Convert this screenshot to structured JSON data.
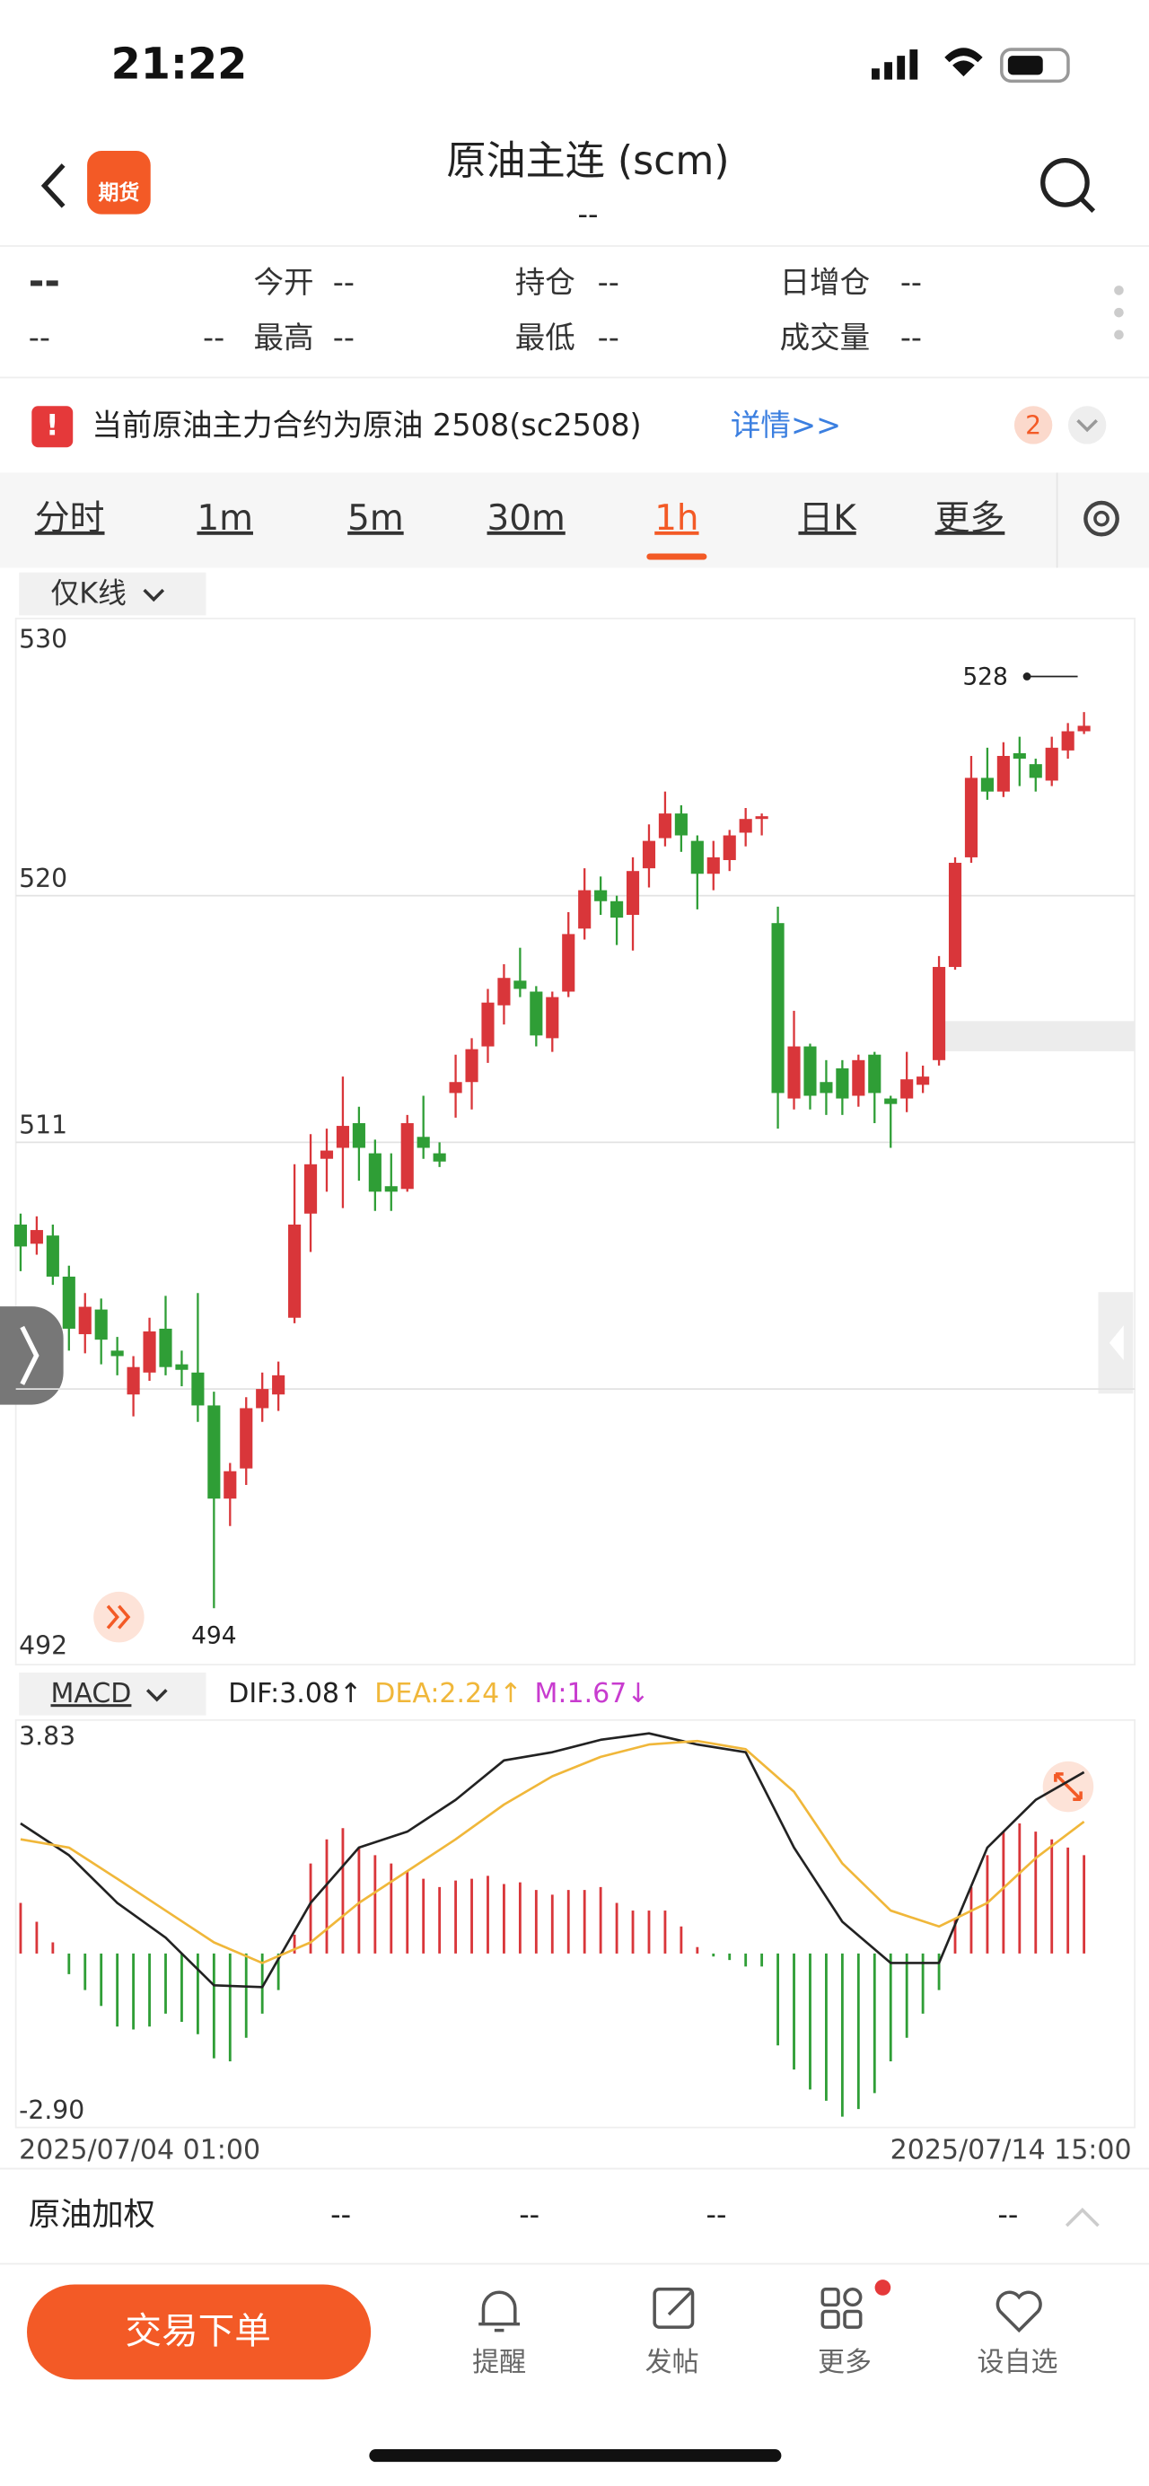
{
  "status": {
    "time": "21:22"
  },
  "header": {
    "logo": "期货",
    "title": "原油主连 (scm)",
    "subtitle": "--"
  },
  "quote": {
    "rows": [
      [
        "--",
        "今开",
        "--",
        "持仓",
        "--",
        "日增仓",
        "--"
      ],
      [
        "--",
        "--",
        "最高",
        "--",
        "最低",
        "--",
        "成交量",
        "--"
      ]
    ]
  },
  "notice": {
    "text": "当前原油主力合约为原油 2508(sc2508)",
    "link": "详情>>",
    "badge": "2"
  },
  "tabs": [
    "分时",
    "1m",
    "5m",
    "30m",
    "1h",
    "日K",
    "更多"
  ],
  "active_tab": "1h",
  "chart_data": [
    {
      "type": "candlestick",
      "mode_label": "仅K线",
      "up_color": "#d9363a",
      "down_color": "#2f9e36",
      "open": [
        508.0,
        507.3,
        507.6,
        506.1,
        504.0,
        504.9,
        503.4,
        501.8,
        502.6,
        504.2,
        502.9,
        502.6,
        501.4,
        498.0,
        499.1,
        501.3,
        501.8,
        504.6,
        508.4,
        510.4,
        510.8,
        511.7,
        510.6,
        509.4,
        509.3,
        511.2,
        510.6,
        512.8,
        513.2,
        514.5,
        516.0,
        516.9,
        516.5,
        514.8,
        516.5,
        518.8,
        520.2,
        519.8,
        519.3,
        521.0,
        522.1,
        523.0,
        522.0,
        520.8,
        521.3,
        522.3,
        522.8,
        519.0,
        512.6,
        514.5,
        513.2,
        513.7,
        512.7,
        514.2,
        512.6,
        512.6,
        513.1,
        514.0,
        517.4,
        521.4,
        524.3,
        523.8,
        525.2,
        524.8,
        524.2,
        525.3,
        526.0
      ],
      "high": [
        508.4,
        508.3,
        508.0,
        506.5,
        505.5,
        505.3,
        503.9,
        503.2,
        504.6,
        505.4,
        503.4,
        505.5,
        501.9,
        499.3,
        501.7,
        502.6,
        503.0,
        510.2,
        511.3,
        511.5,
        513.4,
        512.3,
        511.1,
        510.6,
        512.0,
        512.7,
        511.0,
        514.2,
        514.8,
        516.6,
        517.5,
        518.1,
        516.7,
        516.5,
        519.4,
        521.0,
        520.7,
        520.0,
        521.4,
        522.6,
        523.8,
        523.3,
        522.2,
        522.0,
        522.4,
        523.2,
        523.0,
        519.6,
        515.8,
        514.6,
        514.0,
        514.0,
        514.2,
        514.3,
        512.7,
        514.3,
        513.8,
        517.8,
        521.4,
        525.1,
        525.4,
        525.6,
        525.8,
        525.0,
        525.8,
        526.3,
        526.7
      ],
      "low": [
        506.3,
        506.9,
        505.8,
        503.4,
        503.3,
        502.9,
        502.5,
        501.0,
        502.3,
        502.5,
        502.1,
        500.8,
        494,
        497.0,
        498.5,
        500.8,
        501.2,
        504.4,
        507.0,
        509.2,
        508.6,
        509.6,
        508.5,
        508.5,
        509.2,
        510.4,
        510.1,
        511.9,
        512.2,
        513.9,
        515.3,
        516.3,
        514.5,
        514.3,
        516.3,
        518.4,
        519.3,
        518.2,
        518.0,
        520.3,
        521.8,
        521.6,
        519.5,
        520.2,
        520.9,
        521.8,
        522.2,
        511.5,
        512.2,
        512.2,
        512.0,
        512.0,
        512.3,
        511.7,
        510.8,
        512.1,
        512.8,
        513.8,
        517.3,
        521.2,
        523.5,
        523.6,
        524.0,
        523.8,
        524.0,
        525.0,
        525.9
      ],
      "close": [
        507.2,
        507.8,
        506.1,
        504.2,
        505.0,
        503.8,
        503.2,
        502.8,
        504.1,
        502.8,
        502.7,
        501.4,
        498.0,
        499.0,
        501.3,
        502.0,
        502.5,
        508.0,
        510.2,
        510.7,
        511.6,
        510.8,
        509.2,
        509.2,
        511.7,
        510.8,
        510.3,
        513.2,
        514.4,
        516.1,
        517.0,
        516.6,
        514.9,
        516.3,
        518.6,
        520.2,
        519.8,
        519.2,
        520.9,
        522.0,
        523.0,
        522.2,
        520.8,
        521.4,
        522.2,
        522.8,
        522.9,
        512.8,
        514.5,
        512.7,
        512.8,
        512.6,
        514.0,
        512.8,
        512.4,
        513.3,
        513.4,
        517.4,
        521.2,
        524.3,
        523.8,
        525.1,
        525.0,
        524.3,
        525.4,
        526.0,
        526.2
      ],
      "ylim": [
        492,
        530
      ],
      "yticks": [
        492,
        511,
        520,
        530
      ],
      "ygrid": [
        502,
        511,
        520
      ],
      "annotations": [
        {
          "value": 528
        },
        {
          "value": 494
        }
      ],
      "x_labels": [
        "2025/07/04 01:00",
        "2025/07/14 15:00"
      ]
    },
    {
      "type": "macd",
      "indicator_label": "MACD",
      "legend": [
        {
          "label": "DIF:3.08↑",
          "color": "#222222"
        },
        {
          "label": "DEA:2.24↑",
          "color": "#f0b73a"
        },
        {
          "label": "M:1.67↓",
          "color": "#c83ccf"
        }
      ],
      "ylim": [
        -2.9,
        3.83
      ],
      "yticks": [
        {
          "value": -2.9,
          "label": "-2.90"
        },
        3.83
      ],
      "histogram": {
        "up_color": "#d9363a",
        "down_color": "#2f9e36",
        "values": [
          0.86,
          0.54,
          0.19,
          -0.35,
          -0.62,
          -0.89,
          -1.24,
          -1.29,
          -1.24,
          -1.02,
          -1.16,
          -1.37,
          -1.78,
          -1.83,
          -1.43,
          -1.02,
          -0.62,
          0.32,
          1.53,
          1.94,
          2.13,
          1.8,
          1.67,
          1.53,
          1.4,
          1.27,
          1.13,
          1.24,
          1.27,
          1.32,
          1.18,
          1.21,
          1.08,
          1.0,
          1.08,
          1.08,
          1.13,
          0.86,
          0.73,
          0.73,
          0.73,
          0.46,
          0.11,
          -0.05,
          -0.11,
          -0.22,
          -0.22,
          -1.56,
          -1.97,
          -2.31,
          -2.5,
          -2.77,
          -2.64,
          -2.37,
          -1.83,
          -1.43,
          -1.02,
          -0.62,
          0.59,
          1.13,
          1.67,
          2.07,
          2.21,
          2.07,
          1.94,
          1.8,
          1.67
        ]
      },
      "series": [
        {
          "name": "DIF",
          "color": "#222222",
          "x": [
            0,
            3,
            6,
            9,
            12,
            15,
            18,
            21,
            24,
            27,
            30,
            33,
            36,
            39,
            42,
            45,
            48,
            51,
            54,
            57,
            60,
            63,
            66
          ],
          "values": [
            2.21,
            1.67,
            0.86,
            0.27,
            -0.54,
            -0.57,
            0.86,
            1.8,
            2.07,
            2.61,
            3.28,
            3.42,
            3.63,
            3.74,
            3.55,
            3.42,
            1.8,
            0.54,
            -0.16,
            -0.16,
            1.8,
            2.61,
            3.08
          ]
        },
        {
          "name": "DEA",
          "color": "#f0b73a",
          "x": [
            0,
            3,
            6,
            9,
            12,
            15,
            18,
            21,
            24,
            27,
            30,
            33,
            36,
            39,
            42,
            45,
            48,
            51,
            54,
            57,
            60,
            63,
            66
          ],
          "values": [
            1.94,
            1.8,
            1.27,
            0.73,
            0.19,
            -0.16,
            0.19,
            0.86,
            1.4,
            1.94,
            2.53,
            3.01,
            3.34,
            3.55,
            3.61,
            3.47,
            2.75,
            1.53,
            0.73,
            0.46,
            0.86,
            1.62,
            2.24
          ]
        }
      ]
    }
  ],
  "footer": {
    "name": "原油加权",
    "values": [
      "--",
      "--",
      "--",
      "--"
    ]
  },
  "trade_button": "交易下单",
  "nav": [
    "提醒",
    "发帖",
    "更多",
    "设自选"
  ]
}
